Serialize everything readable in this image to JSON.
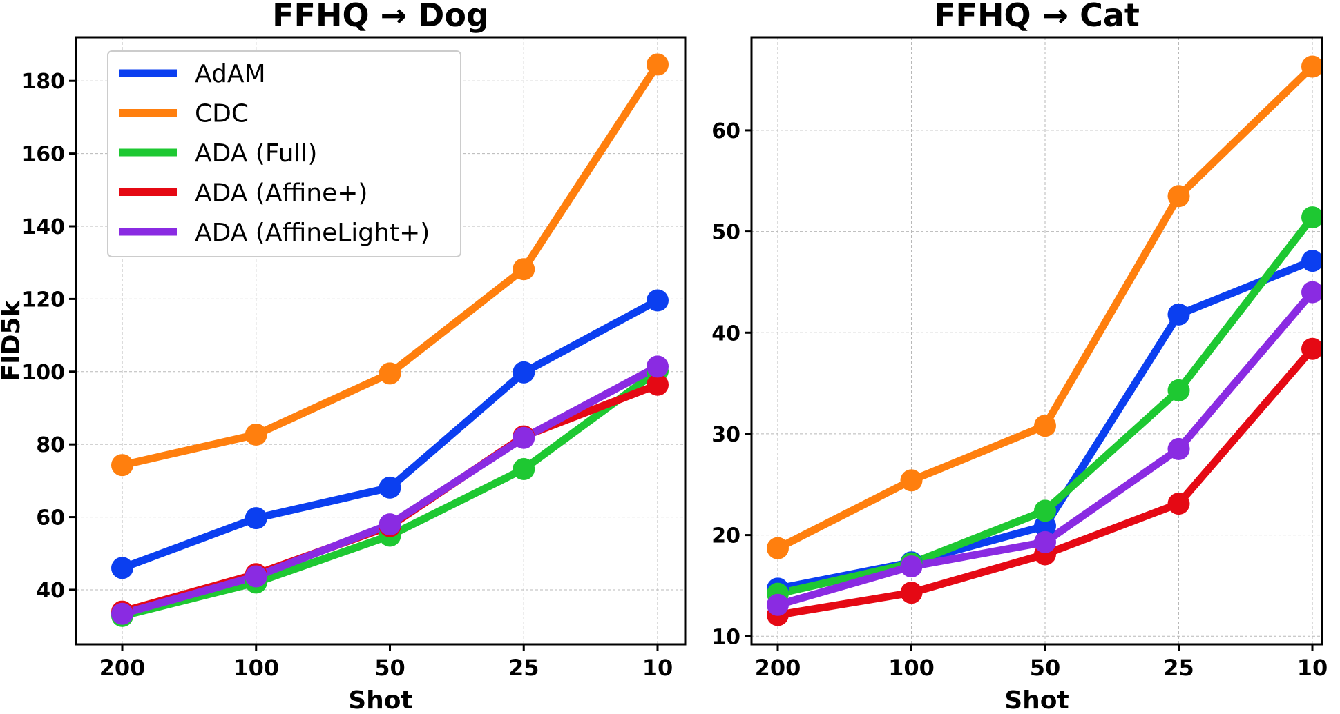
{
  "chart_data": [
    {
      "type": "line",
      "title": "FFHQ → Dog",
      "xlabel": "Shot",
      "ylabel": "FID5k",
      "categories": [
        "200",
        "100",
        "50",
        "25",
        "10"
      ],
      "ylim": [
        25,
        192
      ],
      "yticks": [
        40,
        60,
        80,
        100,
        120,
        140,
        160,
        180
      ],
      "grid": true,
      "legend_position": "upper-left",
      "series": [
        {
          "name": "AdAM",
          "color": "#0b3ff0",
          "values": [
            46,
            59.7,
            68.1,
            99.8,
            119.6
          ]
        },
        {
          "name": "CDC",
          "color": "#ff7f0e",
          "values": [
            74.3,
            82.7,
            99.5,
            128.2,
            184.5
          ]
        },
        {
          "name": "ADA (Full)",
          "color": "#1ec832",
          "values": [
            32.8,
            42,
            54.9,
            73.2,
            100.2
          ]
        },
        {
          "name": "ADA (Affine+)",
          "color": "#e50914",
          "values": [
            34,
            44.3,
            57.5,
            82.2,
            96.4
          ]
        },
        {
          "name": "ADA (AffineLight+)",
          "color": "#8a2be2",
          "values": [
            33.4,
            43.7,
            58,
            81.8,
            101.4
          ]
        }
      ]
    },
    {
      "type": "line",
      "title": "FFHQ → Cat",
      "xlabel": "Shot",
      "ylabel": "",
      "categories": [
        "200",
        "100",
        "50",
        "25",
        "10"
      ],
      "ylim": [
        9.2,
        69.2
      ],
      "yticks": [
        10,
        20,
        30,
        40,
        50,
        60
      ],
      "grid": true,
      "legend_position": "none",
      "series": [
        {
          "name": "AdAM",
          "color": "#0b3ff0",
          "values": [
            14.7,
            17.3,
            20.9,
            41.8,
            47.1
          ]
        },
        {
          "name": "CDC",
          "color": "#ff7f0e",
          "values": [
            18.7,
            25.4,
            30.8,
            53.5,
            66.3
          ]
        },
        {
          "name": "ADA (Full)",
          "color": "#1ec832",
          "values": [
            14.2,
            17.2,
            22.4,
            34.3,
            51.4
          ]
        },
        {
          "name": "ADA (Affine+)",
          "color": "#e50914",
          "values": [
            12.1,
            14.3,
            18.1,
            23.1,
            38.4
          ]
        },
        {
          "name": "ADA (AffineLight+)",
          "color": "#8a2be2",
          "values": [
            13.1,
            16.9,
            19.3,
            28.5,
            44
          ]
        }
      ]
    }
  ]
}
